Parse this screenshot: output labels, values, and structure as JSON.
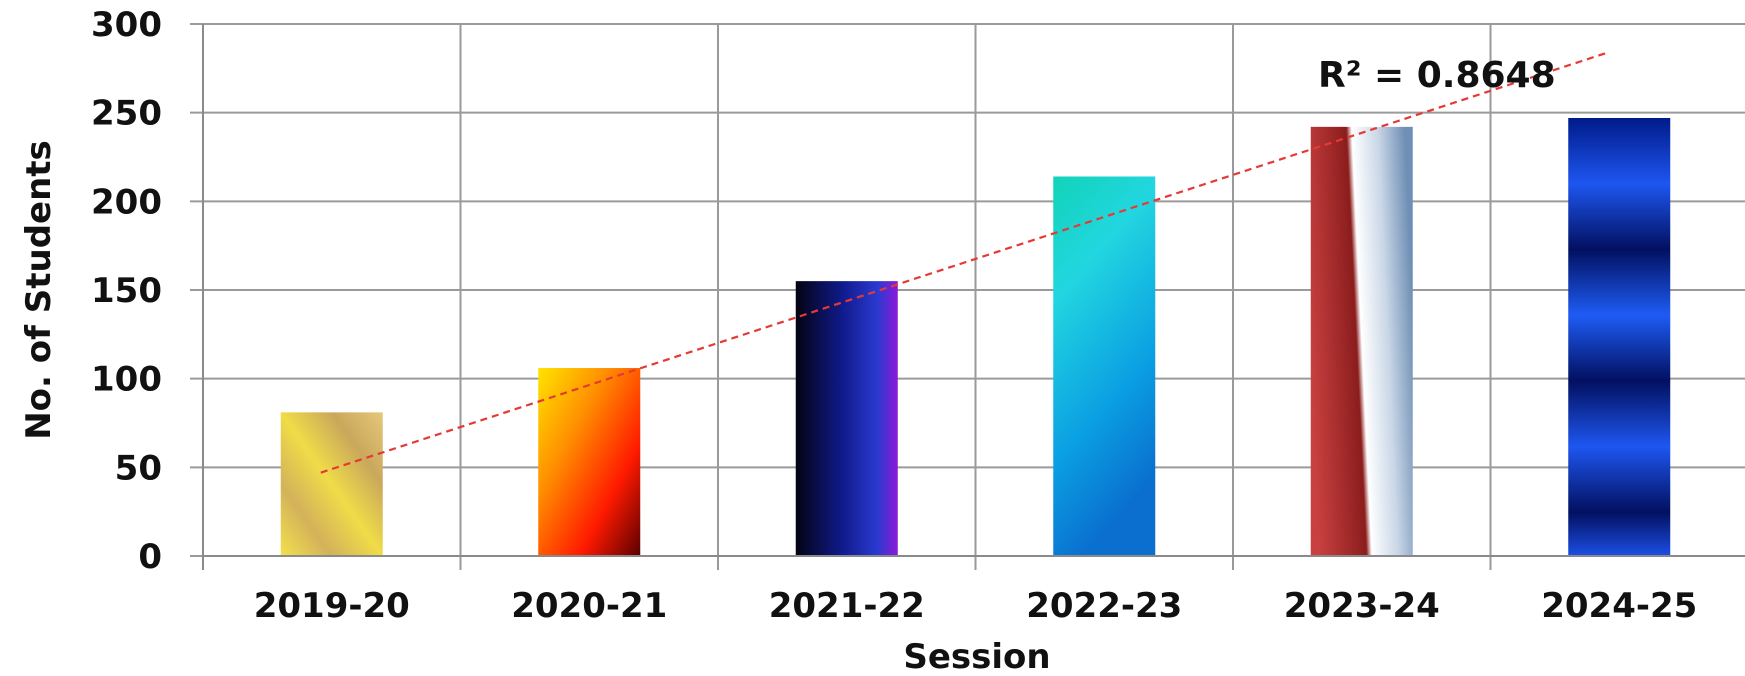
{
  "chart_data": {
    "type": "bar",
    "categories": [
      "2019-20",
      "2020-21",
      "2021-22",
      "2022-23",
      "2023-24",
      "2024-25"
    ],
    "values": [
      81,
      106,
      155,
      214,
      242,
      247
    ],
    "xlabel": "Session",
    "ylabel": "No. of Students",
    "ylim": [
      0,
      300
    ],
    "yticks": [
      0,
      50,
      100,
      150,
      200,
      250,
      300
    ],
    "grid": true,
    "trendline": {
      "type": "linear",
      "start": 47,
      "end": 284,
      "color": "#e53935",
      "style": "dashed",
      "r_squared_label": "R² = 0.8648"
    },
    "bar_fills": [
      "gold-diagonal",
      "yellow-orange-red-diagonal",
      "black-navy-purple-horizontal",
      "teal-blue-vertical",
      "maroon-white-steel-diagonal",
      "navy-royal-blue-banded"
    ]
  }
}
